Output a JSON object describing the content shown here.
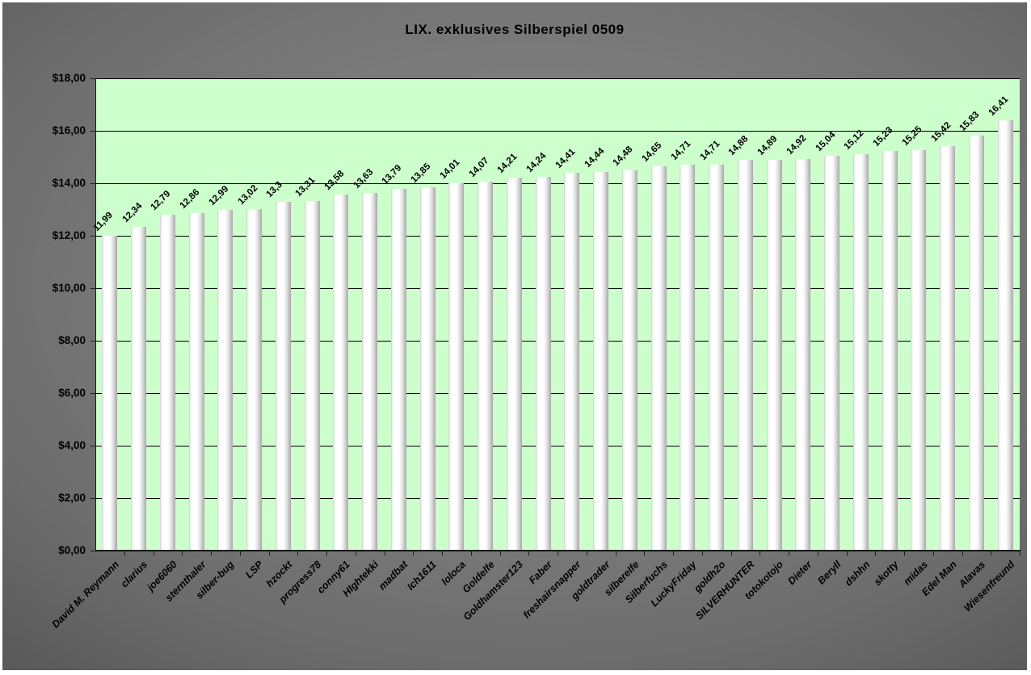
{
  "window": {
    "title": "LIX. exklusives Silberspiel 0509"
  },
  "chart_data": {
    "type": "bar",
    "title": "LIX. exklusives Silberspiel 0509",
    "categories": [
      "David M. Reymann",
      "clarius",
      "joe6060",
      "sternthaler",
      "silber-bug",
      "LSP",
      "hzockt",
      "progress78",
      "conny61",
      "HIghtekki",
      "madbat",
      "Ich1611",
      "loloca",
      "Goldelfe",
      "Goldhamster123",
      "Faber",
      "freshairsnapper",
      "goldtrader",
      "silberelfe",
      "Silberfuchs",
      "LuckyFriday",
      "goldh2o",
      "SILVERHUNTER",
      "totokotojo",
      "Dieter",
      "Beryll",
      "dshhn",
      "skotty",
      "midas",
      "Edel Man",
      "Alavas",
      "Wiesenfreund"
    ],
    "values": [
      11.99,
      12.34,
      12.79,
      12.86,
      12.99,
      13.02,
      13.3,
      13.31,
      13.58,
      13.63,
      13.79,
      13.85,
      14.01,
      14.07,
      14.21,
      14.24,
      14.41,
      14.44,
      14.48,
      14.65,
      14.71,
      14.71,
      14.88,
      14.89,
      14.92,
      15.04,
      15.12,
      15.23,
      15.25,
      15.42,
      15.83,
      16.41
    ],
    "value_labels": [
      "11,99",
      "12,34",
      "12,79",
      "12,86",
      "12,99",
      "13,02",
      "13,3",
      "13,31",
      "13,58",
      "13,63",
      "13,79",
      "13,85",
      "14,01",
      "14,07",
      "14,21",
      "14,24",
      "14,41",
      "14,44",
      "14,48",
      "14,65",
      "14,71",
      "14,71",
      "14,88",
      "14,89",
      "14,92",
      "15,04",
      "15,12",
      "15,23",
      "15,25",
      "15,42",
      "15,83",
      "16,41"
    ],
    "y_tick_labels": [
      "$18,00",
      "$16,00",
      "$14,00",
      "$12,00",
      "$10,00",
      "$8,00",
      "$6,00",
      "$4,00",
      "$2,00",
      "$0,00"
    ],
    "ylim": [
      0,
      18
    ],
    "y_step": 2,
    "grid": true,
    "legend": false,
    "xlabel": "",
    "ylabel": "",
    "colors": {
      "plot_background": "#ccffcc",
      "gridline": "#000000",
      "bar_highlight": "#ffffff",
      "bar_shadow": "#a8a8a8",
      "panel_center": "#838383",
      "panel_edge": "#595959",
      "text": "#000000",
      "outer_border": "#ffffff"
    }
  }
}
